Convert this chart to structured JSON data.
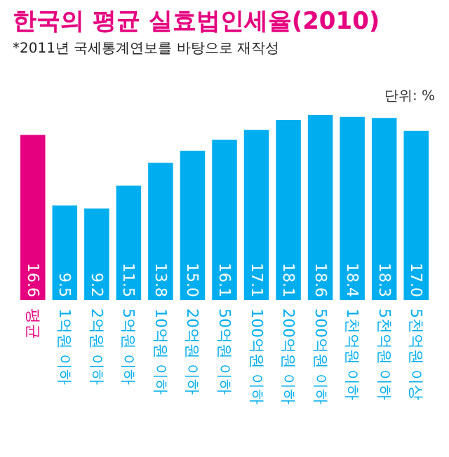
{
  "chart_data": {
    "type": "bar",
    "title": "한국의 평균 실효법인세율(2010)",
    "subtitle": "*2011년 국세통계연보를 바탕으로 재작성",
    "annotations": [
      "단위: %"
    ],
    "categories": [
      "평균",
      "1억원 이하",
      "2억원 이하",
      "5억원 이하",
      "10억원 이하",
      "20억원 이하",
      "50억원 이하",
      "100억원 이하",
      "200억원 이하",
      "500억원 이하",
      "1천억원 이하",
      "5천억원 이하",
      "5천억원 이상"
    ],
    "values": [
      16.6,
      9.5,
      9.2,
      11.5,
      13.8,
      15.0,
      16.1,
      17.1,
      18.1,
      18.6,
      18.4,
      18.3,
      17.0
    ],
    "colors": [
      "#e5007f",
      "#00aeef",
      "#00aeef",
      "#00aeef",
      "#00aeef",
      "#00aeef",
      "#00aeef",
      "#00aeef",
      "#00aeef",
      "#00aeef",
      "#00aeef",
      "#00aeef",
      "#00aeef"
    ],
    "value_labels": [
      "16.6",
      "9.5",
      "9.2",
      "11.5",
      "13.8",
      "15.0",
      "16.1",
      "17.1",
      "18.1",
      "18.6",
      "18.4",
      "18.3",
      "17.0"
    ]
  }
}
